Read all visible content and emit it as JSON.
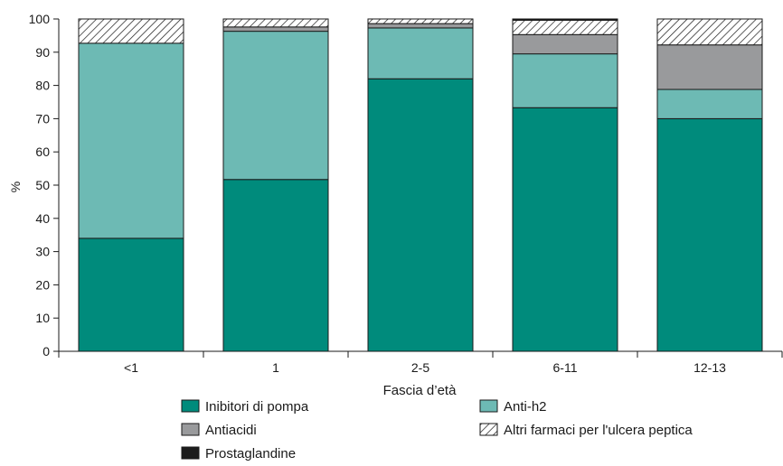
{
  "chart_data": {
    "type": "bar",
    "stacked": true,
    "categories": [
      "<1",
      "1",
      "2-5",
      "6-11",
      "12-13"
    ],
    "series": [
      {
        "name": "Inibitori di pompa",
        "values": [
          34,
          51.7,
          82,
          73.3,
          70
        ],
        "color": "#008b7c",
        "pattern": "solid"
      },
      {
        "name": "Anti-h2",
        "values": [
          58.7,
          44.6,
          15.3,
          16.2,
          8.8
        ],
        "color": "#6dbab4",
        "pattern": "solid"
      },
      {
        "name": "Antiacidi",
        "values": [
          0,
          1.3,
          1.3,
          5.8,
          13.4
        ],
        "color": "#999a9c",
        "pattern": "solid"
      },
      {
        "name": "Altri farmaci per l'ulcera peptica",
        "values": [
          7.3,
          2.4,
          1.4,
          4.3,
          7.8
        ],
        "color": "#ffffff",
        "pattern": "hatch"
      },
      {
        "name": "Prostaglandine",
        "values": [
          0,
          0,
          0,
          0.4,
          0
        ],
        "color": "#1c1c1c",
        "pattern": "solid"
      }
    ],
    "xlabel": "Fascia d’età",
    "ylabel": "%",
    "ylim": [
      0,
      100
    ],
    "yticks": [
      0,
      10,
      20,
      30,
      40,
      50,
      60,
      70,
      80,
      90,
      100
    ],
    "grid": false,
    "legend_position": "bottom"
  }
}
